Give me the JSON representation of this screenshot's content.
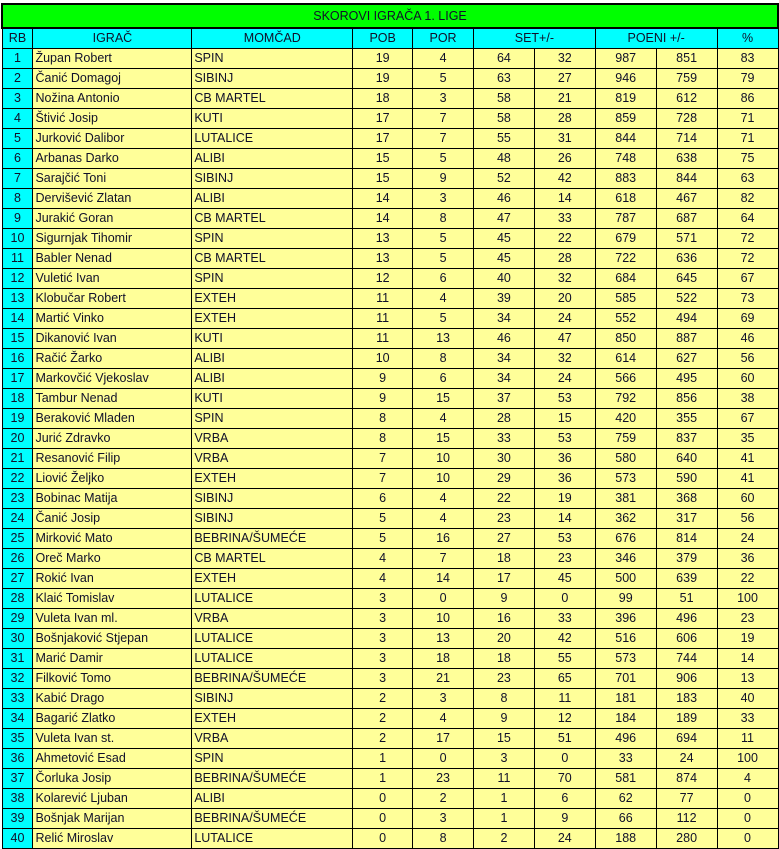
{
  "title": "SKOROVI IGRAČA 1. LIGE",
  "headers": {
    "rb": "RB",
    "player": "IGRAČ",
    "team": "MOMČAD",
    "wins": "POB",
    "losses": "POR",
    "sets": "SET+/-",
    "points": "POENI +/-",
    "pct": "%"
  },
  "colors": {
    "title_bg": "#00ff00",
    "header_bg": "#00ffff",
    "row_bg": "#ffff99"
  },
  "rows": [
    [
      "1",
      "Župan  Robert",
      "SPIN",
      "19",
      "4",
      "64",
      "32",
      "987",
      "851",
      "83"
    ],
    [
      "2",
      "Čanić Domagoj",
      "SIBINJ",
      "19",
      "5",
      "63",
      "27",
      "946",
      "759",
      "79"
    ],
    [
      "3",
      "Nožina  Antonio",
      "CB MARTEL",
      "18",
      "3",
      "58",
      "21",
      "819",
      "612",
      "86"
    ],
    [
      "4",
      "Štivić Josip",
      "KUTI",
      "17",
      "7",
      "58",
      "28",
      "859",
      "728",
      "71"
    ],
    [
      "5",
      "Jurković Dalibor",
      "LUTALICE",
      "17",
      "7",
      "55",
      "31",
      "844",
      "714",
      "71"
    ],
    [
      "6",
      "Arbanas Darko",
      "ALIBI",
      "15",
      "5",
      "48",
      "26",
      "748",
      "638",
      "75"
    ],
    [
      "7",
      "Sarajčić Toni",
      "SIBINJ",
      "15",
      "9",
      "52",
      "42",
      "883",
      "844",
      "63"
    ],
    [
      "8",
      "Dervišević Zlatan",
      "ALIBI",
      "14",
      "3",
      "46",
      "14",
      "618",
      "467",
      "82"
    ],
    [
      "9",
      "Jurakić Goran",
      "CB MARTEL",
      "14",
      "8",
      "47",
      "33",
      "787",
      "687",
      "64"
    ],
    [
      "10",
      "Sigurnjak  Tihomir",
      "SPIN",
      "13",
      "5",
      "45",
      "22",
      "679",
      "571",
      "72"
    ],
    [
      "11",
      "Babler Nenad",
      "CB MARTEL",
      "13",
      "5",
      "45",
      "28",
      "722",
      "636",
      "72"
    ],
    [
      "12",
      "Vuletić Ivan",
      "SPIN",
      "12",
      "6",
      "40",
      "32",
      "684",
      "645",
      "67"
    ],
    [
      "13",
      "Klobučar Robert",
      "EXTEH",
      "11",
      "4",
      "39",
      "20",
      "585",
      "522",
      "73"
    ],
    [
      "14",
      "Martić Vinko",
      "EXTEH",
      "11",
      "5",
      "34",
      "24",
      "552",
      "494",
      "69"
    ],
    [
      "15",
      "Dikanović Ivan",
      "KUTI",
      "11",
      "13",
      "46",
      "47",
      "850",
      "887",
      "46"
    ],
    [
      "16",
      "Račić Žarko",
      "ALIBI",
      "10",
      "8",
      "34",
      "32",
      "614",
      "627",
      "56"
    ],
    [
      "17",
      "Markovčić Vjekoslav",
      "ALIBI",
      "9",
      "6",
      "34",
      "24",
      "566",
      "495",
      "60"
    ],
    [
      "18",
      "Tambur Nenad",
      "KUTI",
      "9",
      "15",
      "37",
      "53",
      "792",
      "856",
      "38"
    ],
    [
      "19",
      "Beraković Mladen",
      "SPIN",
      "8",
      "4",
      "28",
      "15",
      "420",
      "355",
      "67"
    ],
    [
      "20",
      "Jurić Zdravko",
      "VRBA",
      "8",
      "15",
      "33",
      "53",
      "759",
      "837",
      "35"
    ],
    [
      "21",
      "Resanović  Filip",
      "VRBA",
      "7",
      "10",
      "30",
      "36",
      "580",
      "640",
      "41"
    ],
    [
      "22",
      "Liović Željko",
      "EXTEH",
      "7",
      "10",
      "29",
      "36",
      "573",
      "590",
      "41"
    ],
    [
      "23",
      "Bobinac Matija",
      "SIBINJ",
      "6",
      "4",
      "22",
      "19",
      "381",
      "368",
      "60"
    ],
    [
      "24",
      "Čanić Josip",
      "SIBINJ",
      "5",
      "4",
      "23",
      "14",
      "362",
      "317",
      "56"
    ],
    [
      "25",
      "Mirković  Mato",
      "BEBRINA/ŠUMEĆE",
      "5",
      "16",
      "27",
      "53",
      "676",
      "814",
      "24"
    ],
    [
      "26",
      "Oreč Marko",
      "CB MARTEL",
      "4",
      "7",
      "18",
      "23",
      "346",
      "379",
      "36"
    ],
    [
      "27",
      "Rokić Ivan",
      "EXTEH",
      "4",
      "14",
      "17",
      "45",
      "500",
      "639",
      "22"
    ],
    [
      "28",
      "Klaić Tomislav",
      "LUTALICE",
      "3",
      "0",
      "9",
      "0",
      "99",
      "51",
      "100"
    ],
    [
      "29",
      "Vuleta Ivan ml.",
      "VRBA",
      "3",
      "10",
      "16",
      "33",
      "396",
      "496",
      "23"
    ],
    [
      "30",
      "Bošnjaković  Stjepan",
      "LUTALICE",
      "3",
      "13",
      "20",
      "42",
      "516",
      "606",
      "19"
    ],
    [
      "31",
      "Marić Damir",
      "LUTALICE",
      "3",
      "18",
      "18",
      "55",
      "573",
      "744",
      "14"
    ],
    [
      "32",
      "Filković Tomo",
      "BEBRINA/ŠUMEĆE",
      "3",
      "21",
      "23",
      "65",
      "701",
      "906",
      "13"
    ],
    [
      "33",
      "Kabić Drago",
      "SIBINJ",
      "2",
      "3",
      "8",
      "11",
      "181",
      "183",
      "40"
    ],
    [
      "34",
      "Bagarić Zlatko",
      "EXTEH",
      "2",
      "4",
      "9",
      "12",
      "184",
      "189",
      "33"
    ],
    [
      "35",
      "Vuleta Ivan st.",
      "VRBA",
      "2",
      "17",
      "15",
      "51",
      "496",
      "694",
      "11"
    ],
    [
      "36",
      "Ahmetović Esad",
      "SPIN",
      "1",
      "0",
      "3",
      "0",
      "33",
      "24",
      "100"
    ],
    [
      "37",
      "Čorluka Josip",
      "BEBRINA/ŠUMEĆE",
      "1",
      "23",
      "11",
      "70",
      "581",
      "874",
      "4"
    ],
    [
      "38",
      "Kolarević Ljuban",
      "ALIBI",
      "0",
      "2",
      "1",
      "6",
      "62",
      "77",
      "0"
    ],
    [
      "39",
      "Bošnjak Marijan",
      "BEBRINA/ŠUMEĆE",
      "0",
      "3",
      "1",
      "9",
      "66",
      "112",
      "0"
    ],
    [
      "40",
      "Relić Miroslav",
      "LUTALICE",
      "0",
      "8",
      "2",
      "24",
      "188",
      "280",
      "0"
    ]
  ]
}
